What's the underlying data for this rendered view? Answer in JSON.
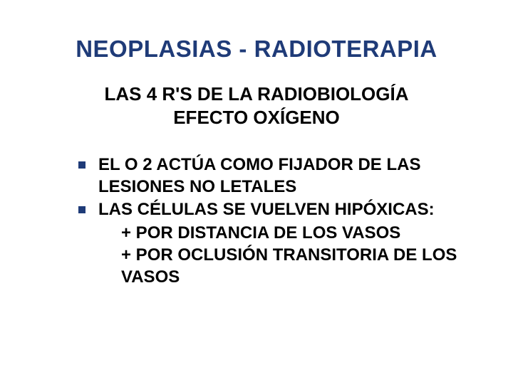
{
  "slide": {
    "title": "NEOPLASIAS - RADIOTERAPIA",
    "subtitle_line1": "LAS 4 R'S DE LA RADIOBIOLOGÍA",
    "subtitle_line2": "EFECTO OXÍGENO",
    "bullets": [
      {
        "text": "EL O 2 ACTÚA COMO FIJADOR DE LAS LESIONES NO LETALES",
        "subs": []
      },
      {
        "text": "LAS CÉLULAS SE VUELVEN HIPÓXICAS:",
        "subs": [
          "+ POR DISTANCIA DE LOS VASOS",
          "+ POR OCLUSIÓN TRANSITORIA DE LOS VASOS"
        ]
      }
    ]
  },
  "style": {
    "title_color": "#1f3b78",
    "title_fontsize": 33,
    "subtitle_color": "#000000",
    "subtitle_fontsize": 26,
    "body_fontsize": 24,
    "bullet_color": "#1f3b78",
    "background_color": "#ffffff"
  }
}
